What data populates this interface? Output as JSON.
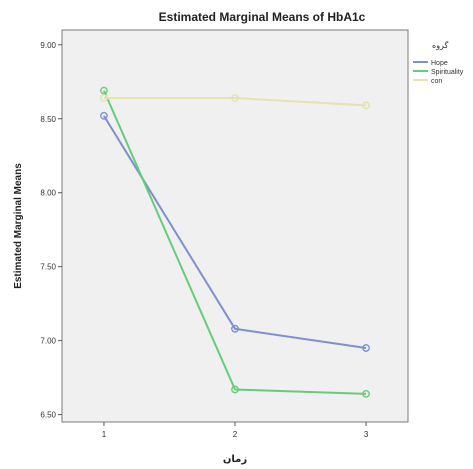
{
  "chart_data": {
    "type": "line",
    "title": "Estimated Marginal Means of HbA1c",
    "xlabel": "زمان",
    "ylabel": "Estimated Marginal Means",
    "x": [
      1,
      2,
      3
    ],
    "x_tick_labels": [
      "1",
      "2",
      "3"
    ],
    "ylim": [
      6.45,
      9.1
    ],
    "y_ticks": [
      6.5,
      7.0,
      7.5,
      8.0,
      8.5,
      9.0
    ],
    "y_tick_labels": [
      "6.50",
      "7.00",
      "7.50",
      "8.00",
      "8.50",
      "9.00"
    ],
    "grid": false,
    "legend_title": "گروه",
    "legend_position": "right",
    "series": [
      {
        "name": "Hope",
        "color": "#7f8fd0",
        "values": [
          8.52,
          7.08,
          6.95
        ]
      },
      {
        "name": "Spirituality",
        "color": "#66cc7a",
        "values": [
          8.69,
          6.67,
          6.64
        ]
      },
      {
        "name": "con",
        "color": "#e6e1b0",
        "values": [
          8.64,
          8.64,
          8.59
        ]
      }
    ]
  }
}
